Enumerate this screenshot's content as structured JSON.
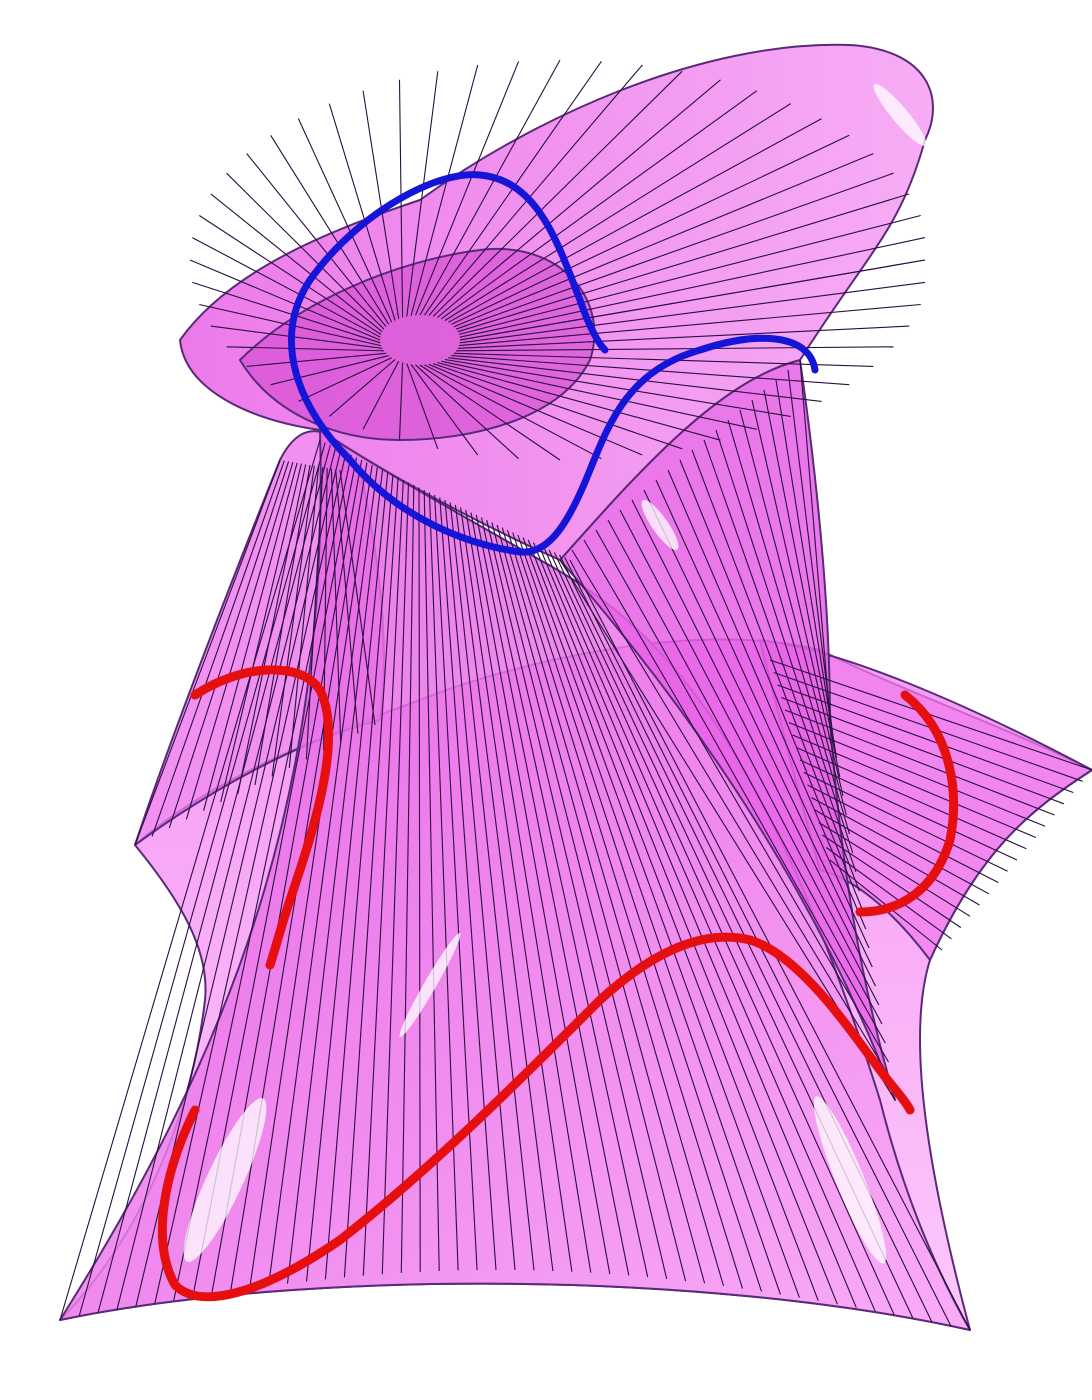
{
  "image": {
    "description_tag": "ruled-surface-render",
    "background_color": "#ffffff"
  },
  "colors": {
    "surface_fill": "#f26cf0",
    "surface_fill_light": "#fab2f7",
    "surface_edge": "#5a2a7a",
    "ruling_line": "#2a0f3e",
    "upper_curve": "#1515d8",
    "lower_curve": "#e60f0f",
    "specular": "#ffffff"
  },
  "curves": [
    {
      "id": "upper-loop",
      "color_key": "upper_curve"
    },
    {
      "id": "left-arc",
      "color_key": "lower_curve"
    },
    {
      "id": "right-arc",
      "color_key": "lower_curve"
    },
    {
      "id": "bottom-wave",
      "color_key": "lower_curve"
    }
  ]
}
